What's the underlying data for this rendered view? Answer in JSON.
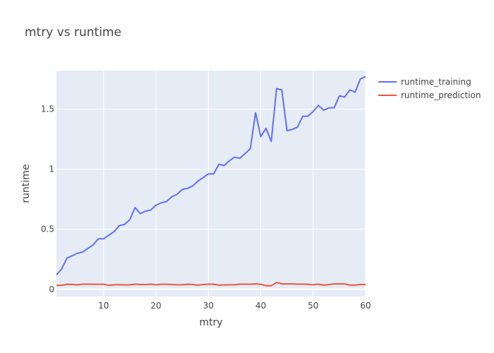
{
  "chart_data": {
    "type": "line",
    "title": "mtry vs runtime",
    "xlabel": "mtry",
    "ylabel": "runtime",
    "xlim": [
      1,
      60
    ],
    "ylim": [
      -0.06,
      1.82
    ],
    "xticks": [
      10,
      20,
      30,
      40,
      50,
      60
    ],
    "xtick_labels": [
      "10",
      "20",
      "30",
      "40",
      "50",
      "60"
    ],
    "yticks": [
      0,
      0.5,
      1,
      1.5
    ],
    "ytick_labels": [
      "0",
      "0.5",
      "1",
      "1.5"
    ],
    "grid": true,
    "legend_position": "top-right outside",
    "plot_background": "#e5ecf6",
    "x": [
      1,
      2,
      3,
      4,
      5,
      6,
      7,
      8,
      9,
      10,
      11,
      12,
      13,
      14,
      15,
      16,
      17,
      18,
      19,
      20,
      21,
      22,
      23,
      24,
      25,
      26,
      27,
      28,
      29,
      30,
      31,
      32,
      33,
      34,
      35,
      36,
      37,
      38,
      39,
      40,
      41,
      42,
      43,
      44,
      45,
      46,
      47,
      48,
      49,
      50,
      51,
      52,
      53,
      54,
      55,
      56,
      57,
      58,
      59,
      60
    ],
    "series": [
      {
        "name": "runtime_training",
        "color": "#636efa",
        "values": [
          0.12,
          0.17,
          0.26,
          0.28,
          0.3,
          0.31,
          0.34,
          0.37,
          0.42,
          0.42,
          0.45,
          0.48,
          0.53,
          0.54,
          0.58,
          0.68,
          0.63,
          0.65,
          0.66,
          0.7,
          0.72,
          0.73,
          0.77,
          0.79,
          0.83,
          0.84,
          0.86,
          0.9,
          0.93,
          0.96,
          0.96,
          1.04,
          1.03,
          1.07,
          1.1,
          1.09,
          1.13,
          1.17,
          1.47,
          1.27,
          1.34,
          1.23,
          1.67,
          1.66,
          1.32,
          1.33,
          1.35,
          1.44,
          1.44,
          1.48,
          1.53,
          1.49,
          1.51,
          1.51,
          1.61,
          1.6,
          1.66,
          1.64,
          1.75,
          1.77
        ]
      },
      {
        "name": "runtime_prediction",
        "color": "#ef553b",
        "values": [
          0.033,
          0.033,
          0.042,
          0.04,
          0.038,
          0.043,
          0.043,
          0.042,
          0.042,
          0.042,
          0.033,
          0.038,
          0.038,
          0.037,
          0.037,
          0.043,
          0.04,
          0.04,
          0.043,
          0.038,
          0.042,
          0.042,
          0.04,
          0.038,
          0.038,
          0.042,
          0.04,
          0.035,
          0.04,
          0.043,
          0.042,
          0.035,
          0.037,
          0.038,
          0.038,
          0.043,
          0.043,
          0.043,
          0.045,
          0.042,
          0.03,
          0.03,
          0.057,
          0.045,
          0.045,
          0.045,
          0.043,
          0.043,
          0.042,
          0.038,
          0.043,
          0.035,
          0.04,
          0.045,
          0.045,
          0.045,
          0.035,
          0.035,
          0.04,
          0.04
        ]
      }
    ]
  }
}
